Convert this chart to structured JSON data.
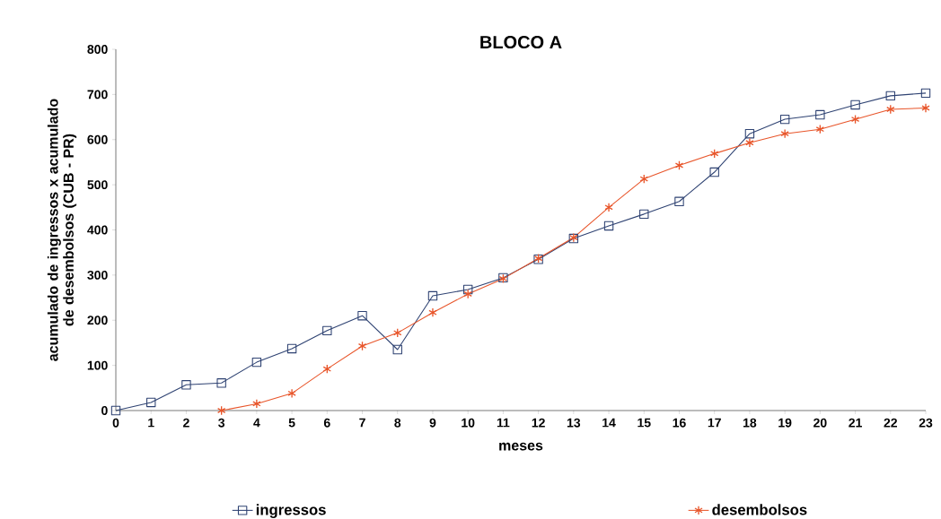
{
  "chart_data": {
    "type": "line",
    "title": "BLOCO A",
    "xlabel": "meses",
    "ylabel": "acumulado de ingressos  x  acumulado de desembolsos  (CUB - PR)",
    "x": [
      0,
      1,
      2,
      3,
      4,
      5,
      6,
      7,
      8,
      9,
      10,
      11,
      12,
      13,
      14,
      15,
      16,
      17,
      18,
      19,
      20,
      21,
      22,
      23
    ],
    "series": [
      {
        "name": "ingressos",
        "color": "#2e4272",
        "marker": "square",
        "values": [
          0,
          18,
          57,
          61,
          107,
          137,
          177,
          210,
          135,
          254,
          268,
          294,
          335,
          381,
          409,
          435,
          463,
          528,
          613,
          645,
          655,
          677,
          697,
          703
        ]
      },
      {
        "name": "desembolsos",
        "color": "#e8552a",
        "marker": "cross",
        "values": [
          null,
          null,
          null,
          0,
          15,
          38,
          92,
          143,
          172,
          217,
          258,
          292,
          337,
          383,
          450,
          513,
          543,
          569,
          593,
          613,
          623,
          645,
          667,
          670
        ]
      }
    ],
    "xlim": [
      0,
      23
    ],
    "ylim": [
      0,
      800
    ],
    "xticks": [
      0,
      1,
      2,
      3,
      4,
      5,
      6,
      7,
      8,
      9,
      10,
      11,
      12,
      13,
      14,
      15,
      16,
      17,
      18,
      19,
      20,
      21,
      22,
      23
    ],
    "yticks": [
      0,
      100,
      200,
      300,
      400,
      500,
      600,
      700,
      800
    ],
    "grid": false,
    "legend": "bottom"
  }
}
